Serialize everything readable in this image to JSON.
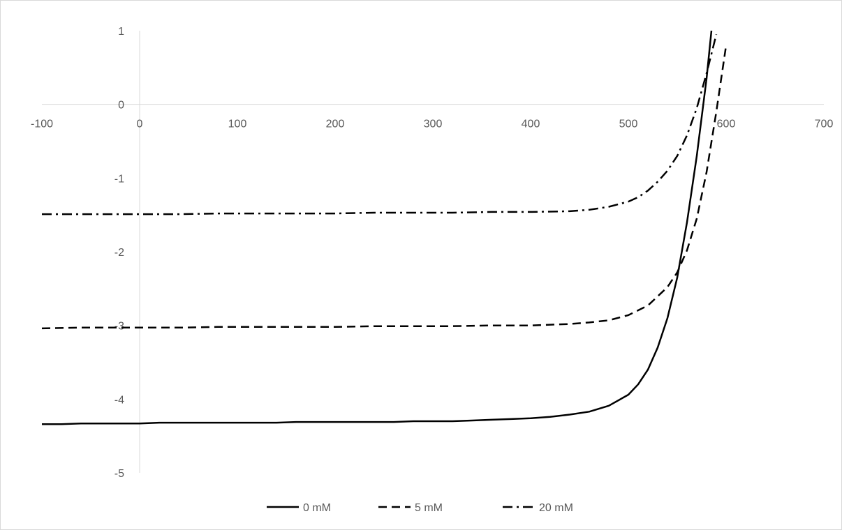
{
  "chart_data": {
    "type": "line",
    "title": "",
    "xlabel": "",
    "ylabel": "",
    "xlim": [
      -100,
      700
    ],
    "ylim": [
      -5,
      1
    ],
    "x_ticks": [
      -100,
      0,
      100,
      200,
      300,
      400,
      500,
      600,
      700
    ],
    "y_ticks": [
      1,
      0,
      -1,
      -2,
      -3,
      -4,
      -5
    ],
    "grid": false,
    "legend_position": "bottom",
    "colors": {
      "line": "#000000",
      "axis": "#d9d9d9",
      "text": "#595959",
      "border": "#d9d9d9"
    },
    "series": [
      {
        "name": "0 mM",
        "style": "solid",
        "points": [
          [
            -100,
            -4.34
          ],
          [
            -80,
            -4.34
          ],
          [
            -60,
            -4.33
          ],
          [
            -40,
            -4.33
          ],
          [
            -20,
            -4.33
          ],
          [
            0,
            -4.33
          ],
          [
            20,
            -4.32
          ],
          [
            40,
            -4.32
          ],
          [
            60,
            -4.32
          ],
          [
            80,
            -4.32
          ],
          [
            100,
            -4.32
          ],
          [
            120,
            -4.32
          ],
          [
            140,
            -4.32
          ],
          [
            160,
            -4.31
          ],
          [
            180,
            -4.31
          ],
          [
            200,
            -4.31
          ],
          [
            220,
            -4.31
          ],
          [
            240,
            -4.31
          ],
          [
            260,
            -4.31
          ],
          [
            280,
            -4.3
          ],
          [
            300,
            -4.3
          ],
          [
            320,
            -4.3
          ],
          [
            340,
            -4.29
          ],
          [
            360,
            -4.28
          ],
          [
            380,
            -4.27
          ],
          [
            400,
            -4.26
          ],
          [
            420,
            -4.24
          ],
          [
            440,
            -4.21
          ],
          [
            460,
            -4.17
          ],
          [
            480,
            -4.09
          ],
          [
            500,
            -3.94
          ],
          [
            510,
            -3.8
          ],
          [
            520,
            -3.6
          ],
          [
            530,
            -3.3
          ],
          [
            540,
            -2.9
          ],
          [
            550,
            -2.35
          ],
          [
            560,
            -1.6
          ],
          [
            570,
            -0.7
          ],
          [
            580,
            0.35
          ],
          [
            585,
            1.0
          ]
        ]
      },
      {
        "name": "5 mM",
        "style": "dashed",
        "points": [
          [
            -100,
            -3.04
          ],
          [
            -60,
            -3.03
          ],
          [
            -20,
            -3.03
          ],
          [
            0,
            -3.03
          ],
          [
            40,
            -3.03
          ],
          [
            80,
            -3.02
          ],
          [
            120,
            -3.02
          ],
          [
            160,
            -3.02
          ],
          [
            200,
            -3.02
          ],
          [
            240,
            -3.01
          ],
          [
            280,
            -3.01
          ],
          [
            320,
            -3.01
          ],
          [
            360,
            -3.0
          ],
          [
            400,
            -3.0
          ],
          [
            440,
            -2.98
          ],
          [
            460,
            -2.96
          ],
          [
            480,
            -2.93
          ],
          [
            500,
            -2.86
          ],
          [
            520,
            -2.73
          ],
          [
            540,
            -2.48
          ],
          [
            550,
            -2.28
          ],
          [
            560,
            -1.98
          ],
          [
            570,
            -1.55
          ],
          [
            580,
            -0.92
          ],
          [
            590,
            -0.1
          ],
          [
            600,
            0.8
          ]
        ]
      },
      {
        "name": "20 mM",
        "style": "dashdot",
        "points": [
          [
            -100,
            -1.49
          ],
          [
            -60,
            -1.49
          ],
          [
            -20,
            -1.49
          ],
          [
            0,
            -1.49
          ],
          [
            40,
            -1.49
          ],
          [
            80,
            -1.48
          ],
          [
            120,
            -1.48
          ],
          [
            160,
            -1.48
          ],
          [
            200,
            -1.48
          ],
          [
            240,
            -1.47
          ],
          [
            280,
            -1.47
          ],
          [
            320,
            -1.47
          ],
          [
            360,
            -1.46
          ],
          [
            400,
            -1.46
          ],
          [
            440,
            -1.45
          ],
          [
            460,
            -1.43
          ],
          [
            480,
            -1.39
          ],
          [
            500,
            -1.32
          ],
          [
            510,
            -1.26
          ],
          [
            520,
            -1.17
          ],
          [
            530,
            -1.05
          ],
          [
            540,
            -0.9
          ],
          [
            550,
            -0.7
          ],
          [
            560,
            -0.42
          ],
          [
            570,
            -0.05
          ],
          [
            580,
            0.42
          ],
          [
            590,
            0.95
          ]
        ]
      }
    ]
  }
}
